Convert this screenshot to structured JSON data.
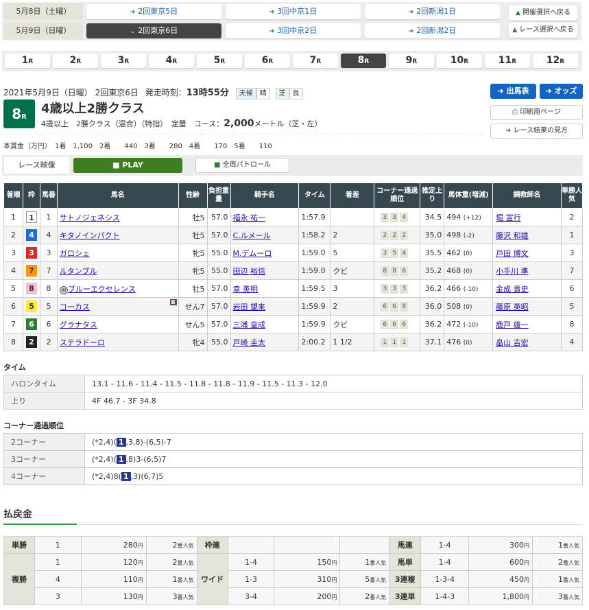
{
  "date_nav": [
    {
      "date": "5月8日（土曜）",
      "venues": [
        {
          "label": "2回東京5日",
          "active": false
        },
        {
          "label": "3回中京1日",
          "active": false
        },
        {
          "label": "2回新潟1日",
          "active": false
        }
      ]
    },
    {
      "date": "5月9日（日曜）",
      "venues": [
        {
          "label": "2回東京6日",
          "active": true
        },
        {
          "label": "3回中京2日",
          "active": false
        },
        {
          "label": "2回新潟2日",
          "active": false
        }
      ]
    }
  ],
  "back_buttons": {
    "meeting": "開催選択へ戻る",
    "race": "レース選択へ戻る"
  },
  "race_tabs": [
    "1",
    "2",
    "3",
    "4",
    "5",
    "6",
    "7",
    "8",
    "9",
    "10",
    "11",
    "12"
  ],
  "race_tab_suffix": "R",
  "active_race": "8",
  "race": {
    "date_line": "2021年5月9日（日曜） 2回東京6日",
    "start_label": "発走時刻：",
    "start_time": "13時55分",
    "weather_label": "天候",
    "weather": "晴",
    "surface_label": "芝",
    "condition": "良",
    "number": "8",
    "title": "4歳以上2勝クラス",
    "conditions": "4歳以上　2勝クラス（混合）（特指）　定量",
    "course_label": "コース：",
    "distance": "2,000",
    "distance_unit": "メートル（芝・左）",
    "prize": "本賞金（万円）　1着　1,100　2着　　440　3着　　280　4着　　170　5着　　110"
  },
  "side_buttons": {
    "entries": "出馬表",
    "odds": "オッズ",
    "print": "印刷用ページ",
    "guide": "レース結果の見方"
  },
  "video": {
    "label": "レース映像",
    "play": "PLAY",
    "patrol": "全周パトロール"
  },
  "results": {
    "headers": [
      "着順",
      "枠",
      "馬番",
      "馬名",
      "性齢",
      "負担重量",
      "騎手名",
      "タイム",
      "着差",
      "コーナー通過順位",
      "推定上り",
      "馬体重(増減)",
      "調教師名",
      "単勝人気"
    ],
    "rows": [
      {
        "pos": "1",
        "waku": "1",
        "num": "1",
        "horse": "サトノジェネシス",
        "mark": "",
        "blinker": "",
        "sexage": "牡5",
        "weight": "57.0",
        "jockey": "福永 祐一",
        "time": "1:57.9",
        "margin": "",
        "corners": [
          "3",
          "3",
          "4"
        ],
        "last3f": "34.5",
        "body": "494",
        "diff": "(+12)",
        "trainer": "堀 宣行",
        "pop": "2"
      },
      {
        "pos": "2",
        "waku": "4",
        "num": "4",
        "horse": "キタノインパクト",
        "mark": "",
        "blinker": "",
        "sexage": "牡5",
        "weight": "57.0",
        "jockey": "C.ルメール",
        "time": "1:58.2",
        "margin": "2",
        "corners": [
          "2",
          "2",
          "2"
        ],
        "last3f": "35.0",
        "body": "498",
        "diff": "(-2)",
        "trainer": "藤沢 和雄",
        "pop": "1"
      },
      {
        "pos": "3",
        "waku": "3",
        "num": "3",
        "horse": "ガロシェ",
        "mark": "",
        "blinker": "",
        "sexage": "牝5",
        "weight": "55.0",
        "jockey": "M.デムーロ",
        "time": "1:59.0",
        "margin": "5",
        "corners": [
          "3",
          "5",
          "4"
        ],
        "last3f": "35.5",
        "body": "462",
        "diff": "(0)",
        "trainer": "戸田 博文",
        "pop": "3"
      },
      {
        "pos": "4",
        "waku": "7",
        "num": "7",
        "horse": "ルタンブル",
        "mark": "",
        "blinker": "",
        "sexage": "牝5",
        "weight": "55.0",
        "jockey": "田辺 裕信",
        "time": "1:59.0",
        "margin": "クビ",
        "corners": [
          "8",
          "8",
          "6"
        ],
        "last3f": "35.2",
        "body": "468",
        "diff": "(0)",
        "trainer": "小手川 準",
        "pop": "7"
      },
      {
        "pos": "5",
        "waku": "8",
        "num": "8",
        "horse": "ブルーエクセレンス",
        "mark": "地",
        "blinker": "",
        "sexage": "牡5",
        "weight": "57.0",
        "jockey": "幸 英明",
        "time": "1:59.5",
        "margin": "3",
        "corners": [
          "3",
          "3",
          "3"
        ],
        "last3f": "36.2",
        "body": "466",
        "diff": "(-10)",
        "trainer": "金成 貴史",
        "pop": "6"
      },
      {
        "pos": "6",
        "waku": "5",
        "num": "5",
        "horse": "コーカス",
        "mark": "",
        "blinker": "B",
        "sexage": "せん7",
        "weight": "57.0",
        "jockey": "岩田 望来",
        "time": "1:59.9",
        "margin": "2",
        "corners": [
          "6",
          "6",
          "8"
        ],
        "last3f": "36.0",
        "body": "508",
        "diff": "(0)",
        "trainer": "藤原 英昭",
        "pop": "5"
      },
      {
        "pos": "7",
        "waku": "6",
        "num": "6",
        "horse": "グラナタス",
        "mark": "",
        "blinker": "",
        "sexage": "せん5",
        "weight": "57.0",
        "jockey": "三浦 皇成",
        "time": "1:59.9",
        "margin": "クビ",
        "corners": [
          "6",
          "6",
          "6"
        ],
        "last3f": "36.2",
        "body": "472",
        "diff": "(-10)",
        "trainer": "鹿戸 雄一",
        "pop": "8"
      },
      {
        "pos": "8",
        "waku": "2",
        "num": "2",
        "horse": "ステラドーロ",
        "mark": "",
        "blinker": "",
        "sexage": "牝4",
        "weight": "55.0",
        "jockey": "戸崎 圭太",
        "time": "2:00.2",
        "margin": "1 1/2",
        "corners": [
          "1",
          "1",
          "1"
        ],
        "last3f": "37.1",
        "body": "476",
        "diff": "(0)",
        "trainer": "畠山 吉宏",
        "pop": "4"
      }
    ]
  },
  "waku_colors": {
    "1": [
      "#ffffff",
      "#333"
    ],
    "2": [
      "#222222",
      "#fff"
    ],
    "3": [
      "#d32f2f",
      "#fff"
    ],
    "4": [
      "#1e6fd0",
      "#fff"
    ],
    "5": [
      "#ffeb3b",
      "#333"
    ],
    "6": [
      "#2e7d32",
      "#fff"
    ],
    "7": [
      "#ff9800",
      "#333"
    ],
    "8": [
      "#f8bbd0",
      "#333"
    ]
  },
  "time_section": {
    "title": "タイム",
    "rows": [
      {
        "label": "ハロンタイム",
        "value": "13.1 - 11.6 - 11.4 - 11.5 - 11.8 - 11.8 - 11.9 - 11.5 - 11.3 - 12.0"
      },
      {
        "label": "上り",
        "value": "4F 46.7 - 3F 34.8"
      }
    ]
  },
  "corner_section": {
    "title": "コーナー通過順位",
    "rows": [
      {
        "label": "2コーナー",
        "pre": "(*2,4)(",
        "hl": "1",
        "post": ",3,8)-(6,5)-7"
      },
      {
        "label": "3コーナー",
        "pre": "(*2,4)(",
        "hl": "1",
        "post": ",8)3-(6,5)7"
      },
      {
        "label": "4コーナー",
        "pre": "(*2,4)8(",
        "hl": "1",
        "post": ",3)(6,7)5"
      }
    ]
  },
  "payout": {
    "title": "払戻金",
    "yen": "円",
    "pop_suffix": "番人気",
    "tansho": {
      "label": "単勝",
      "rows": [
        {
          "n": "1",
          "amt": "280",
          "pop": "2"
        }
      ]
    },
    "fukusho": {
      "label": "複勝",
      "rows": [
        {
          "n": "1",
          "amt": "120",
          "pop": "2"
        },
        {
          "n": "4",
          "amt": "110",
          "pop": "1"
        },
        {
          "n": "3",
          "amt": "130",
          "pop": "3"
        }
      ]
    },
    "wakuren": {
      "label": "枠連"
    },
    "wide": {
      "label": "ワイド",
      "rows": [
        {
          "n": "1-4",
          "amt": "150",
          "pop": "1"
        },
        {
          "n": "1-3",
          "amt": "310",
          "pop": "5"
        },
        {
          "n": "3-4",
          "amt": "200",
          "pop": "2"
        }
      ]
    },
    "others": [
      {
        "label": "馬連",
        "n": "1-4",
        "amt": "300",
        "pop": "1"
      },
      {
        "label": "馬単",
        "n": "1-4",
        "amt": "600",
        "pop": "2"
      },
      {
        "label": "3連複",
        "n": "1-3-4",
        "amt": "450",
        "pop": "1"
      },
      {
        "label": "3連単",
        "n": "1-4-3",
        "amt": "1,800",
        "pop": "3"
      }
    ]
  }
}
